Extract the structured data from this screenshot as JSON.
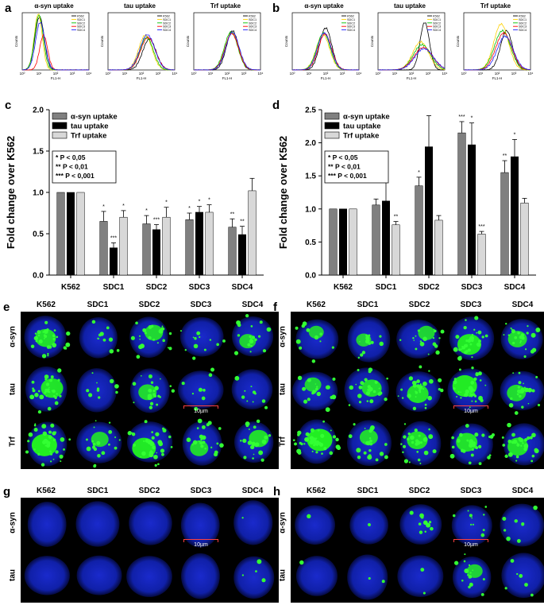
{
  "panels": {
    "a": "a",
    "b": "b",
    "c": "c",
    "d": "d",
    "e": "e",
    "f": "f",
    "g": "g",
    "h": "h"
  },
  "flow": {
    "legend": [
      "K562",
      "SDC1",
      "SDC2",
      "SDC3",
      "SDC4"
    ],
    "colors": [
      "#000000",
      "#ffd000",
      "#00c000",
      "#ff0000",
      "#2020ff"
    ],
    "ylabel": "Counts",
    "xlabel": "FL1-H",
    "xticks": [
      "10⁰",
      "10¹",
      "10²",
      "10³",
      "10⁴"
    ],
    "titles_a": [
      "α-syn uptake",
      "tau uptake",
      "Trf uptake"
    ],
    "titles_b": [
      "α-syn uptake",
      "tau uptake",
      "Trf uptake"
    ]
  },
  "chart_data": [
    {
      "type": "bar",
      "categories": [
        "K562",
        "SDC1",
        "SDC2",
        "SDC3",
        "SDC4"
      ],
      "ylabel": "Fold change over K562",
      "ylim": [
        0,
        2.0
      ],
      "yticks": [
        "0.0",
        "0.5",
        "1.0",
        "1.5",
        "2.0"
      ],
      "series": [
        {
          "name": "α-syn uptake",
          "color": "#808080",
          "values": [
            1.0,
            0.65,
            0.62,
            0.67,
            0.58
          ],
          "err": [
            0,
            0.12,
            0.1,
            0.08,
            0.1
          ],
          "sig": [
            "",
            "*",
            "*",
            "*",
            "**"
          ]
        },
        {
          "name": "tau uptake",
          "color": "#000000",
          "values": [
            1.0,
            0.33,
            0.55,
            0.76,
            0.49
          ],
          "err": [
            0,
            0.06,
            0.06,
            0.07,
            0.1
          ],
          "sig": [
            "",
            "***",
            "***",
            "*",
            "**"
          ]
        },
        {
          "name": "Trf uptake",
          "color": "#d8d8d8",
          "values": [
            1.0,
            0.7,
            0.7,
            0.76,
            1.02
          ],
          "err": [
            0,
            0.08,
            0.12,
            0.09,
            0.15
          ],
          "sig": [
            "",
            "*",
            "*",
            "*",
            ""
          ]
        }
      ],
      "stats": [
        "* P < 0,05",
        "** P < 0,01",
        "*** P < 0,001"
      ],
      "legend_position": "top-left"
    },
    {
      "type": "bar",
      "categories": [
        "K562",
        "SDC1",
        "SDC2",
        "SDC3",
        "SDC4"
      ],
      "ylabel": "Fold change over K562",
      "ylim": [
        0,
        2.5
      ],
      "yticks": [
        "0.0",
        "0.5",
        "1.0",
        "1.5",
        "2.0",
        "2.5"
      ],
      "series": [
        {
          "name": "α-syn uptake",
          "color": "#808080",
          "values": [
            1.0,
            1.06,
            1.35,
            2.15,
            1.55
          ],
          "err": [
            0,
            0.09,
            0.13,
            0.17,
            0.18
          ],
          "sig": [
            "",
            "",
            "*",
            "***",
            "**"
          ]
        },
        {
          "name": "tau uptake",
          "color": "#000000",
          "values": [
            1.0,
            1.12,
            1.94,
            1.97,
            1.79
          ],
          "err": [
            0,
            0.31,
            0.47,
            0.33,
            0.26
          ],
          "sig": [
            "",
            "",
            "",
            "*",
            "*"
          ]
        },
        {
          "name": "Trf uptake",
          "color": "#d8d8d8",
          "values": [
            1.0,
            0.76,
            0.83,
            0.62,
            1.09
          ],
          "err": [
            0,
            0.05,
            0.07,
            0.04,
            0.07
          ],
          "sig": [
            "",
            "**",
            "",
            "***",
            ""
          ]
        }
      ],
      "stats": [
        "* P < 0,05",
        "** P < 0,01",
        "*** P < 0,001"
      ],
      "legend_position": "top-left"
    }
  ],
  "micro": {
    "columns": [
      "K562",
      "SDC1",
      "SDC2",
      "SDC3",
      "SDC4"
    ],
    "rows_ef": [
      "α-syn",
      "tau",
      "Trf"
    ],
    "rows_gh": [
      "α-syn",
      "tau"
    ],
    "scale": "10µm"
  }
}
